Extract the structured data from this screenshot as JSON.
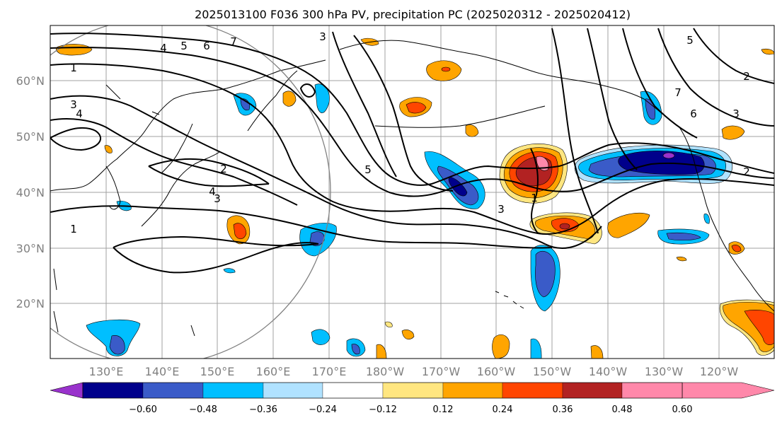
{
  "title": "2025013100 F036 300 hPa PV, precipitation PC (2025020312 - 2025020412)",
  "latitude_labels": [
    "60°N",
    "50°N",
    "40°N",
    "30°N",
    "20°N"
  ],
  "longitude_labels": [
    "130°E",
    "140°E",
    "150°E",
    "160°E",
    "170°E",
    "180°W",
    "170°W",
    "160°W",
    "150°W",
    "140°W",
    "130°W",
    "120°W"
  ],
  "colorbar": {
    "tick_labels": [
      "−0.60",
      "−0.48",
      "−0.36",
      "−0.24",
      "−0.12",
      "0.12",
      "0.24",
      "0.36",
      "0.48",
      "0.60"
    ],
    "colors": [
      "#9932cc",
      "#00008b",
      "#3a5bc8",
      "#00bfff",
      "#b0e2ff",
      "#ffffff",
      "#ffe680",
      "#ffa500",
      "#ff4500",
      "#b22222",
      "#ff88aa"
    ]
  },
  "pv_contour_labels": [
    "1",
    "1",
    "1",
    "2",
    "2",
    "2",
    "3",
    "3",
    "3",
    "3",
    "3",
    "4",
    "4",
    "4",
    "5",
    "5",
    "5",
    "6",
    "6",
    "7",
    "7"
  ],
  "colors": {
    "contour": "#000000",
    "grid": "#a0a0a0",
    "coast": "#000000",
    "circle": "#808080"
  }
}
